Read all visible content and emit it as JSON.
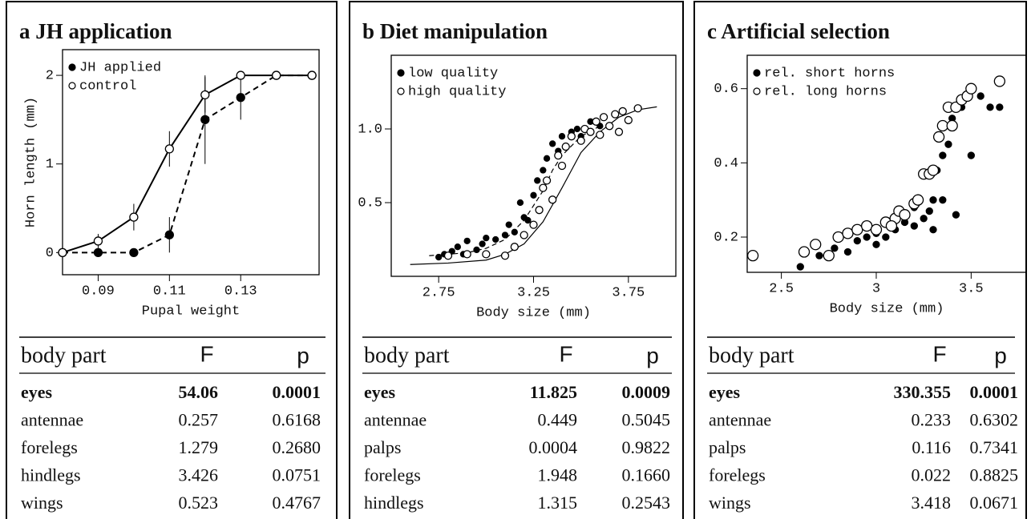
{
  "chart_data": [
    {
      "type": "line",
      "title": "a  JH application",
      "x_label": "Pupal weight",
      "y_label": "Horn length (mm)",
      "x": [
        0.08,
        0.09,
        0.1,
        0.11,
        0.12,
        0.13,
        0.14,
        0.15
      ],
      "series": [
        {
          "name": "JH applied",
          "color": "#000000",
          "marker": "filled",
          "dash": true,
          "values": [
            0,
            0,
            0,
            0.2,
            1.5,
            1.75,
            2,
            2
          ],
          "errors": [
            0,
            0,
            0,
            0.2,
            0.5,
            0.25,
            0,
            0
          ]
        },
        {
          "name": "control",
          "color": "#000000",
          "marker": "open",
          "dash": false,
          "values": [
            0,
            0.13,
            0.4,
            1.17,
            1.78,
            2,
            2,
            2
          ],
          "errors": [
            0,
            0.08,
            0.15,
            0.2,
            0.2,
            0,
            0,
            0
          ]
        }
      ],
      "xlim": [
        0.08,
        0.152
      ],
      "xticks": [
        0.09,
        0.11,
        0.13
      ],
      "ylim": [
        -0.25,
        2.29
      ],
      "yticks": [
        0,
        1,
        2
      ],
      "legend": "upper left"
    },
    {
      "type": "scatter",
      "title": "b  Diet manipulation",
      "x_label": "Body size (mm)",
      "series": [
        {
          "name": "low quality",
          "color": "#000000",
          "marker": "filled",
          "x": [
            2.75,
            2.78,
            2.82,
            2.85,
            2.88,
            2.9,
            2.95,
            2.98,
            3.0,
            3.05,
            3.1,
            3.12,
            3.15,
            3.18,
            3.2,
            3.22,
            3.25,
            3.27,
            3.3,
            3.32,
            3.35,
            3.38,
            3.4,
            3.42,
            3.45,
            3.48,
            3.5,
            3.55,
            3.6
          ],
          "values": [
            0.13,
            0.15,
            0.17,
            0.2,
            0.15,
            0.24,
            0.18,
            0.22,
            0.26,
            0.25,
            0.28,
            0.35,
            0.3,
            0.5,
            0.4,
            0.38,
            0.55,
            0.65,
            0.72,
            0.8,
            0.9,
            0.85,
            0.95,
            0.88,
            0.98,
            1.0,
            0.95,
            1.05,
            1.02
          ]
        },
        {
          "name": "high quality",
          "color": "#000000",
          "marker": "open",
          "x": [
            2.8,
            2.9,
            3.0,
            3.1,
            3.15,
            3.2,
            3.25,
            3.28,
            3.3,
            3.32,
            3.35,
            3.38,
            3.4,
            3.42,
            3.45,
            3.5,
            3.52,
            3.55,
            3.58,
            3.6,
            3.62,
            3.65,
            3.68,
            3.7,
            3.72,
            3.75,
            3.8
          ],
          "values": [
            0.14,
            0.15,
            0.15,
            0.14,
            0.2,
            0.28,
            0.35,
            0.45,
            0.6,
            0.65,
            0.52,
            0.82,
            0.75,
            0.88,
            0.95,
            0.92,
            1.0,
            0.98,
            1.05,
            0.96,
            1.08,
            1.02,
            1.1,
            0.98,
            1.12,
            1.06,
            1.14
          ]
        }
      ],
      "curves": [
        {
          "dash": false,
          "x": [
            2.6,
            2.8,
            3.0,
            3.1,
            3.2,
            3.3,
            3.4,
            3.45,
            3.5,
            3.6,
            3.7,
            3.8,
            3.9
          ],
          "values": [
            0.08,
            0.09,
            0.11,
            0.15,
            0.22,
            0.37,
            0.6,
            0.72,
            0.84,
            0.98,
            1.08,
            1.13,
            1.15
          ]
        },
        {
          "dash": true,
          "x": [
            2.7,
            2.9,
            3.0,
            3.1,
            3.2,
            3.3,
            3.35,
            3.4,
            3.5,
            3.6
          ],
          "values": [
            0.14,
            0.16,
            0.19,
            0.25,
            0.38,
            0.58,
            0.72,
            0.82,
            0.95,
            1.02
          ]
        }
      ],
      "xlim": [
        2.5,
        4.0
      ],
      "xticks": [
        2.75,
        3.25,
        3.75
      ],
      "ylim": [
        0,
        1.5
      ],
      "yticks": [
        0.5,
        {
          "value": 1,
          "label": "1.0"
        }
      ],
      "legend": "upper left"
    },
    {
      "type": "scatter",
      "title": "c  Artificial selection",
      "x_label": "Body size (mm)",
      "series": [
        {
          "name": "rel. short horns",
          "color": "#000000",
          "marker": "filled",
          "x": [
            2.6,
            2.7,
            2.78,
            2.85,
            2.9,
            2.95,
            3.0,
            3.05,
            3.1,
            3.15,
            3.2,
            3.25,
            3.28,
            3.3,
            3.32,
            3.35,
            3.38,
            3.4,
            3.45,
            3.5,
            3.55,
            3.6,
            3.65,
            3.3,
            3.2,
            3.0,
            3.35,
            3.42
          ],
          "values": [
            0.12,
            0.15,
            0.17,
            0.16,
            0.19,
            0.2,
            0.21,
            0.2,
            0.22,
            0.24,
            0.23,
            0.25,
            0.27,
            0.3,
            0.38,
            0.42,
            0.45,
            0.52,
            0.55,
            0.42,
            0.58,
            0.55,
            0.55,
            0.22,
            0.28,
            0.18,
            0.3,
            0.26
          ]
        },
        {
          "name": "rel. long horns",
          "color": "#000000",
          "marker": "open",
          "x": [
            2.35,
            2.62,
            2.68,
            2.75,
            2.8,
            2.85,
            2.9,
            2.95,
            3.0,
            3.05,
            3.1,
            3.12,
            3.15,
            3.2,
            3.22,
            3.25,
            3.28,
            3.3,
            3.33,
            3.35,
            3.38,
            3.4,
            3.42,
            3.45,
            3.48,
            3.5,
            3.65,
            3.08
          ],
          "values": [
            0.15,
            0.16,
            0.18,
            0.15,
            0.2,
            0.21,
            0.22,
            0.23,
            0.22,
            0.24,
            0.25,
            0.27,
            0.26,
            0.29,
            0.3,
            0.37,
            0.37,
            0.38,
            0.47,
            0.5,
            0.55,
            0.5,
            0.55,
            0.57,
            0.58,
            0.6,
            0.62,
            0.23
          ]
        }
      ],
      "xlim": [
        2.32,
        3.79
      ],
      "xticks": [
        2.5,
        3,
        3.5
      ],
      "ylim": [
        0.105,
        0.69
      ],
      "yticks": [
        0.2,
        0.4,
        0.6
      ],
      "legend": "upper left"
    }
  ],
  "tables": [
    {
      "header": [
        "body part",
        "F",
        "p"
      ],
      "rows": [
        [
          "eyes",
          "54.06",
          "0.0001"
        ],
        [
          "antennae",
          "0.257",
          "0.6168"
        ],
        [
          "forelegs",
          "1.279",
          "0.2680"
        ],
        [
          "hindlegs",
          "3.426",
          "0.0751"
        ],
        [
          "wings",
          "0.523",
          "0.4767"
        ]
      ]
    },
    {
      "header": [
        "body part",
        "F",
        "p"
      ],
      "rows": [
        [
          "eyes",
          "11.825",
          "0.0009"
        ],
        [
          "antennae",
          "0.449",
          "0.5045"
        ],
        [
          "palps",
          "0.0004",
          "0.9822"
        ],
        [
          "forelegs",
          "1.948",
          "0.1660"
        ],
        [
          "hindlegs",
          "1.315",
          "0.2543"
        ]
      ]
    },
    {
      "header": [
        "body part",
        "F",
        "p"
      ],
      "rows": [
        [
          "eyes",
          "330.355",
          "0.0001"
        ],
        [
          "antennae",
          "0.233",
          "0.6302"
        ],
        [
          "palps",
          "0.116",
          "0.7341"
        ],
        [
          "forelegs",
          "0.022",
          "0.8825"
        ],
        [
          "wings",
          "3.418",
          "0.0671"
        ]
      ]
    }
  ]
}
